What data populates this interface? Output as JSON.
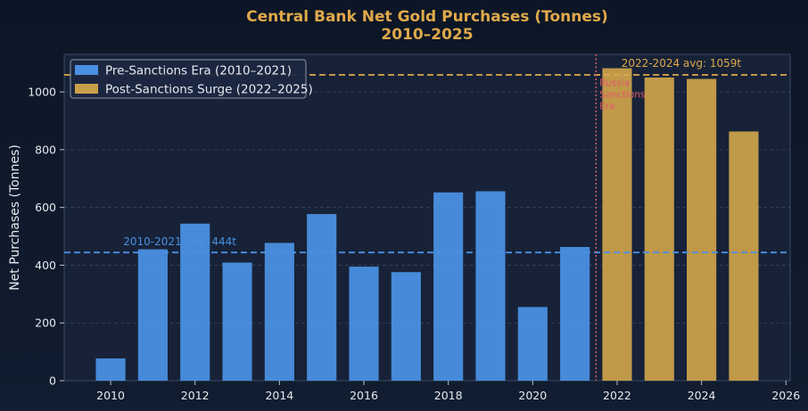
{
  "chart_data": {
    "type": "bar",
    "title_line1": "Central Bank Net Gold Purchases (Tonnes)",
    "title_line2": "2010–2025",
    "xlabel": "",
    "ylabel": "Net Purchases (Tonnes)",
    "xlim": [
      2008.9,
      2026.1
    ],
    "ylim": [
      0,
      1130
    ],
    "xticks": [
      2010,
      2012,
      2014,
      2016,
      2018,
      2020,
      2022,
      2024,
      2026
    ],
    "yticks": [
      0,
      200,
      400,
      600,
      800,
      1000
    ],
    "grid": true,
    "legend_position": "top-left",
    "series": [
      {
        "name": "Pre-Sanctions Era (2010–2021)",
        "color": "#4a90e2",
        "x": [
          2010,
          2011,
          2012,
          2013,
          2014,
          2015,
          2016,
          2017,
          2018,
          2019,
          2020,
          2021
        ],
        "values": [
          77,
          455,
          544,
          409,
          477,
          577,
          395,
          376,
          652,
          656,
          255,
          463
        ]
      },
      {
        "name": "Post-Sanctions Surge (2022–2025)",
        "color": "#c9a04a",
        "x": [
          2022,
          2023,
          2024,
          2025
        ],
        "values": [
          1082,
          1050,
          1045,
          863
        ]
      }
    ],
    "reference_lines": [
      {
        "label": "2010-2021 avg: 444t",
        "value": 444,
        "color": "#4a90e2"
      },
      {
        "label": "2022-2024 avg: 1059t",
        "value": 1059,
        "color": "#e0a94a"
      }
    ],
    "vertical_marker": {
      "x": 2021.5,
      "label_lines": [
        "Russia",
        "Sanctions",
        "Era"
      ],
      "color": "#e05a6a"
    }
  }
}
